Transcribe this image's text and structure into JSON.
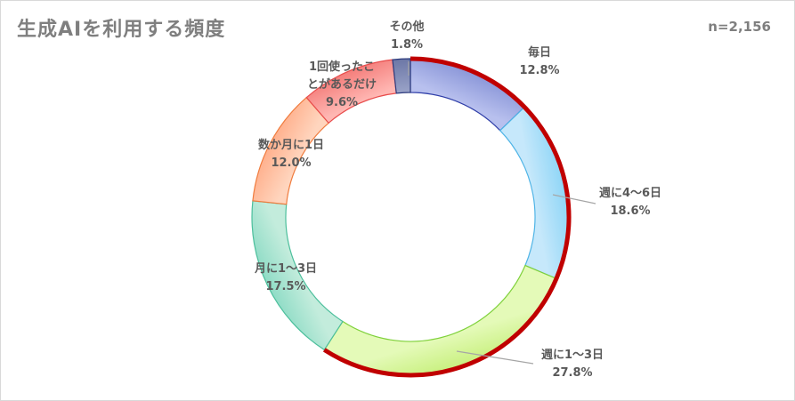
{
  "chart_data": {
    "type": "donut",
    "title": "生成AIを利用する頻度",
    "sample_size_label": "n=2,156",
    "categories": [
      "毎日",
      "週に4～6日",
      "週に1～3日",
      "月に1～3日",
      "数か月に1日",
      "1回使ったことがあるだけ",
      "その他"
    ],
    "values": [
      12.8,
      18.6,
      27.8,
      17.5,
      12.0,
      9.6,
      1.8
    ],
    "value_labels": [
      "12.8%",
      "18.6%",
      "27.8%",
      "17.5%",
      "12.0%",
      "9.6%",
      "1.8%"
    ],
    "label_lines": [
      [
        "毎日"
      ],
      [
        "週に4～6日"
      ],
      [
        "週に1～3日"
      ],
      [
        "月に1～3日"
      ],
      [
        "数か月に1日"
      ],
      [
        "1回使ったこ",
        "とがあるだけ"
      ],
      [
        "その他"
      ]
    ],
    "colors": [
      {
        "light": "#b8c0ee",
        "dark": "#8a96d8",
        "edge": "#2f3ea8"
      },
      {
        "light": "#c6e8fb",
        "dark": "#8dd5f6",
        "edge": "#4fb4e6"
      },
      {
        "light": "#e4fab8",
        "dark": "#c8f07e",
        "edge": "#7fd13b"
      },
      {
        "light": "#c3ecdc",
        "dark": "#8fdcc6",
        "edge": "#4cbf9c"
      },
      {
        "light": "#ffd5be",
        "dark": "#ffb08d",
        "edge": "#f07c3e"
      },
      {
        "light": "#ffb7b3",
        "dark": "#f47e7b",
        "edge": "#e84c4c"
      },
      {
        "light": "#9aa3c8",
        "dark": "#6c77a6",
        "edge": "#2c3a7d"
      }
    ],
    "highlight": {
      "from_category": "毎日",
      "to_category": "週に1～3日",
      "color": "#c00000"
    }
  }
}
